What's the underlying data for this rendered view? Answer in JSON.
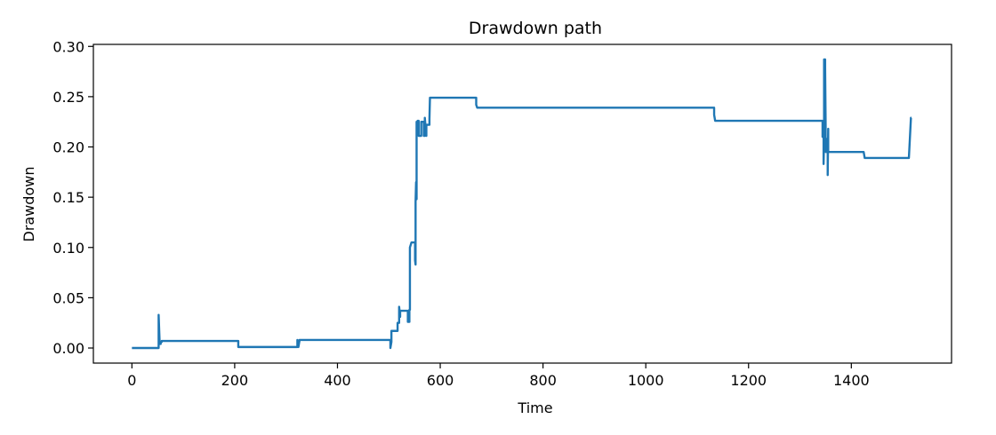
{
  "chart_data": {
    "type": "line",
    "title": "Drawdown path",
    "xlabel": "Time",
    "ylabel": "Drawdown",
    "xlim": [
      -75,
      1595
    ],
    "ylim": [
      -0.015,
      0.302
    ],
    "xticks": [
      0,
      200,
      400,
      600,
      800,
      1000,
      1200,
      1400
    ],
    "xtick_labels": [
      "0",
      "200",
      "400",
      "600",
      "800",
      "1000",
      "1200",
      "1400"
    ],
    "yticks": [
      0.0,
      0.05,
      0.1,
      0.15,
      0.2,
      0.25,
      0.3
    ],
    "ytick_labels": [
      "0.00",
      "0.05",
      "0.10",
      "0.15",
      "0.20",
      "0.25",
      "0.30"
    ],
    "grid": false,
    "series": [
      {
        "color": "#1f77b4",
        "x": [
          0,
          52,
          52,
          54,
          54,
          56,
          56,
          58,
          58,
          207,
          207,
          322,
          322,
          324,
          324,
          326,
          326,
          328,
          328,
          503,
          503,
          505,
          505,
          507,
          507,
          517,
          517,
          520,
          520,
          522,
          522,
          525,
          525,
          526,
          526,
          537,
          537,
          540,
          540,
          541,
          541,
          544,
          544,
          547,
          547,
          551,
          551,
          552,
          552,
          553,
          553,
          554,
          554,
          556,
          556,
          557,
          557,
          558,
          558,
          560,
          560,
          563,
          563,
          568,
          568,
          570,
          570,
          573,
          573,
          579,
          579,
          580,
          580,
          581,
          581,
          584,
          584,
          670,
          670,
          672,
          672,
          1133,
          1133,
          1135,
          1135,
          1344,
          1344,
          1346,
          1346,
          1347,
          1347,
          1349,
          1349,
          1350,
          1350,
          1352,
          1352,
          1354,
          1354,
          1355,
          1355,
          1357,
          1357,
          1360,
          1360,
          1424,
          1424,
          1426,
          1426,
          1512,
          1512,
          1516,
          1517
        ],
        "values": [
          0.0,
          0.0,
          0.033,
          0.005,
          0.004,
          0.004,
          0.006,
          0.006,
          0.007,
          0.007,
          0.001,
          0.001,
          0.008,
          0.001,
          0.001,
          0.007,
          0.008,
          0.008,
          0.008,
          0.008,
          0.0,
          0.006,
          0.017,
          0.017,
          0.017,
          0.017,
          0.025,
          0.025,
          0.041,
          0.031,
          0.037,
          0.037,
          0.037,
          0.037,
          0.037,
          0.037,
          0.026,
          0.026,
          0.038,
          0.038,
          0.1,
          0.105,
          0.105,
          0.105,
          0.105,
          0.105,
          0.087,
          0.083,
          0.145,
          0.165,
          0.148,
          0.148,
          0.225,
          0.225,
          0.226,
          0.226,
          0.226,
          0.226,
          0.211,
          0.211,
          0.211,
          0.211,
          0.225,
          0.225,
          0.211,
          0.211,
          0.229,
          0.211,
          0.222,
          0.222,
          0.228,
          0.249,
          0.249,
          0.249,
          0.249,
          0.249,
          0.249,
          0.249,
          0.242,
          0.239,
          0.239,
          0.239,
          0.232,
          0.226,
          0.226,
          0.226,
          0.21,
          0.21,
          0.183,
          0.208,
          0.287,
          0.287,
          0.279,
          0.222,
          0.195,
          0.195,
          0.208,
          0.208,
          0.172,
          0.218,
          0.195,
          0.195,
          0.195,
          0.195,
          0.195,
          0.195,
          0.195,
          0.189,
          0.189,
          0.189,
          0.189,
          0.229,
          0.229
        ]
      }
    ]
  }
}
